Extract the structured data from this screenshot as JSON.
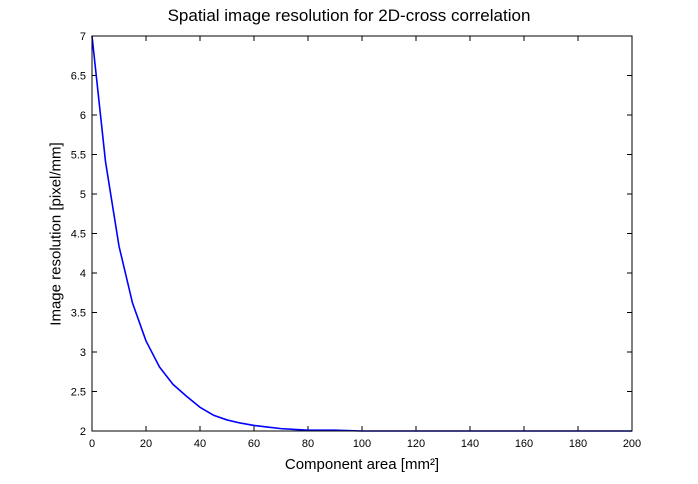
{
  "chart_data": {
    "type": "line",
    "title": "Spatial image resolution for 2D-cross correlation",
    "xlabel": "Component area [mm²]",
    "ylabel": "Image resolution [pixel/mm]",
    "xlim": [
      0,
      200
    ],
    "ylim": [
      2,
      7
    ],
    "xticks": [
      "0",
      "20",
      "40",
      "60",
      "80",
      "100",
      "120",
      "140",
      "160",
      "180",
      "200"
    ],
    "yticks": [
      "2",
      "2.5",
      "3",
      "3.5",
      "4",
      "4.5",
      "5",
      "5.5",
      "6",
      "6.5",
      "7"
    ],
    "grid": false,
    "line_color": "#0000ff",
    "series": [
      {
        "x": [
          0,
          5,
          10,
          15,
          20,
          25,
          30,
          35,
          40,
          45,
          50,
          55,
          60,
          65,
          70,
          75,
          80,
          90,
          100,
          120,
          140,
          160,
          180,
          200
        ],
        "values": [
          7.0,
          5.41,
          4.34,
          3.62,
          3.14,
          2.81,
          2.59,
          2.44,
          2.3,
          2.2,
          2.14,
          2.1,
          2.07,
          2.05,
          2.03,
          2.02,
          2.01,
          2.01,
          2.0,
          2.0,
          2.0,
          2.0,
          2.0,
          2.0
        ]
      }
    ]
  }
}
